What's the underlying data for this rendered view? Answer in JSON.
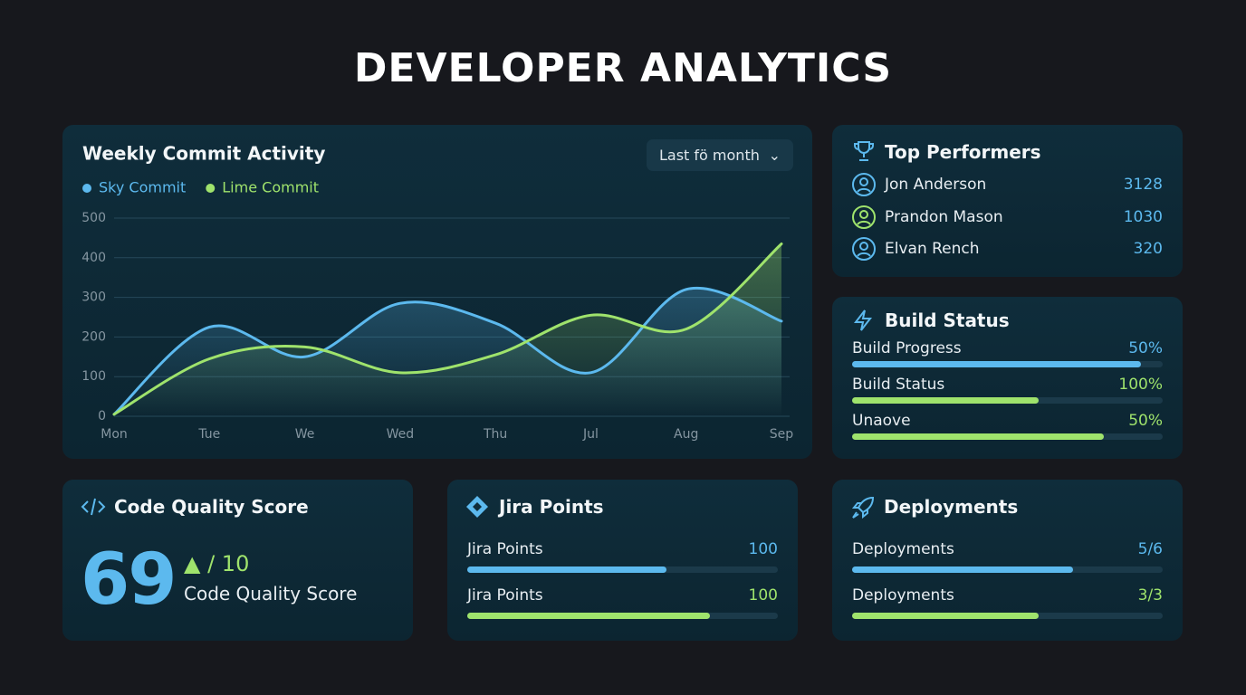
{
  "header": {
    "title": "DEVELOPER ANALYTICS"
  },
  "commit_chart": {
    "type": "line",
    "title": "Weekly Commit Activity",
    "period": "Last fö month",
    "categories": [
      "Mon",
      "Tue",
      "We",
      "Wed",
      "Thu",
      "Jul",
      "Aug",
      "Sep"
    ],
    "series": [
      {
        "name": "Sky Commit",
        "color": "#5cb9ee",
        "values": [
          5,
          225,
          150,
          285,
          235,
          110,
          320,
          240
        ]
      },
      {
        "name": "Lime Commit",
        "color": "#9fe36c",
        "values": [
          5,
          145,
          175,
          110,
          155,
          255,
          220,
          435
        ]
      }
    ],
    "ylim": [
      0,
      500
    ],
    "yticks": [
      0,
      100,
      200,
      300,
      400,
      500
    ],
    "grid": true
  },
  "top_performers": {
    "title": "Top Performers",
    "rows": [
      {
        "name": "Jon Anderson",
        "score": 3128
      },
      {
        "name": "Prandon Mason",
        "score": 1030
      },
      {
        "name": "Elvan Rench",
        "score": 320
      }
    ]
  },
  "build_status": {
    "title": "Build Status",
    "rows": [
      {
        "label": "Build Progress",
        "value": "50%"
      },
      {
        "label": "Build Status",
        "value": "100%"
      },
      {
        "label": "Unaove",
        "value": "50%"
      }
    ]
  },
  "code_quality": {
    "title": "Code Quality Score",
    "score": 69,
    "scale": "/ 10",
    "caption": "Code Quality Score"
  },
  "jira": {
    "title": "Jira Points",
    "rows": [
      {
        "label": "Jira Points",
        "value": 100
      },
      {
        "label": "Jira Points",
        "value": 100
      }
    ]
  },
  "deployments": {
    "title": "Deployments",
    "rows": [
      {
        "label": "Deployments",
        "value": "5/6"
      },
      {
        "label": "Deployments",
        "value": "3/3"
      }
    ]
  }
}
